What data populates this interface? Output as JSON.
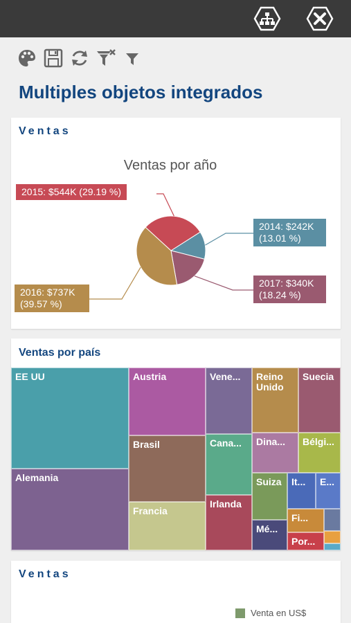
{
  "page": {
    "title": "Multiples objetos integrados"
  },
  "topbar": {
    "buttons": [
      {
        "icon": "hierarchy-icon"
      },
      {
        "icon": "close-icon"
      }
    ]
  },
  "toolbar": {
    "tools": [
      {
        "icon": "palette-icon"
      },
      {
        "icon": "save-icon"
      },
      {
        "icon": "refresh-icon"
      },
      {
        "icon": "clear-filter-icon"
      },
      {
        "icon": "filter-icon"
      }
    ]
  },
  "card1": {
    "title": "Ventas",
    "chart_data": {
      "type": "pie",
      "title": "Ventas por año",
      "slices": [
        {
          "name": "2014",
          "label": "2014: $242K (13.01 %)",
          "value": 242,
          "percent": 13.01,
          "color": "#5b8fa3"
        },
        {
          "name": "2015",
          "label": "2015: $544K (29.19 %)",
          "value": 544,
          "percent": 29.19,
          "color": "#c74a55"
        },
        {
          "name": "2016",
          "label": "2016: $737K (39.57 %)",
          "value": 737,
          "percent": 39.57,
          "color": "#b58c4c"
        },
        {
          "name": "2017",
          "label": "2017: $340K (18.24 %)",
          "value": 340,
          "percent": 18.24,
          "color": "#9a5a70"
        }
      ]
    }
  },
  "card2": {
    "title": "Ventas por país",
    "chart_data": {
      "type": "treemap",
      "tiles": [
        {
          "name": "EE UU",
          "color": "#4a9faa"
        },
        {
          "name": "Alemania",
          "color": "#7d6290"
        },
        {
          "name": "Austria",
          "color": "#ab5aa2"
        },
        {
          "name": "Brasil",
          "color": "#8e6a5a"
        },
        {
          "name": "Francia",
          "color": "#c5c78e"
        },
        {
          "name": "Vene...",
          "color": "#7a6a96"
        },
        {
          "name": "Cana...",
          "color": "#5aaa8a"
        },
        {
          "name": "Irlanda",
          "color": "#a8495b"
        },
        {
          "name": "Reino\nUnido",
          "color": "#b58c4c"
        },
        {
          "name": "Suecia",
          "color": "#9a5a70"
        },
        {
          "name": "Dina...",
          "color": "#ab7aa2"
        },
        {
          "name": "Bélgi...",
          "color": "#a8b84a"
        },
        {
          "name": "Suiza",
          "color": "#7a9a5a"
        },
        {
          "name": "It...",
          "color": "#4a6ab8"
        },
        {
          "name": "E...",
          "color": "#5a7ac8"
        },
        {
          "name": "Fi...",
          "color": "#c88a3a"
        },
        {
          "name": "Mé...",
          "color": "#4a4a7a"
        },
        {
          "name": "Por...",
          "color": "#c8404a"
        },
        {
          "name": "",
          "color": "#6a7aa0"
        },
        {
          "name": "",
          "color": "#e8a040"
        },
        {
          "name": "",
          "color": "#5aaac8"
        }
      ]
    }
  },
  "card3": {
    "title": "Ventas",
    "legend": [
      {
        "label": "Venta en US$",
        "color": "#7e9a6c"
      }
    ]
  }
}
